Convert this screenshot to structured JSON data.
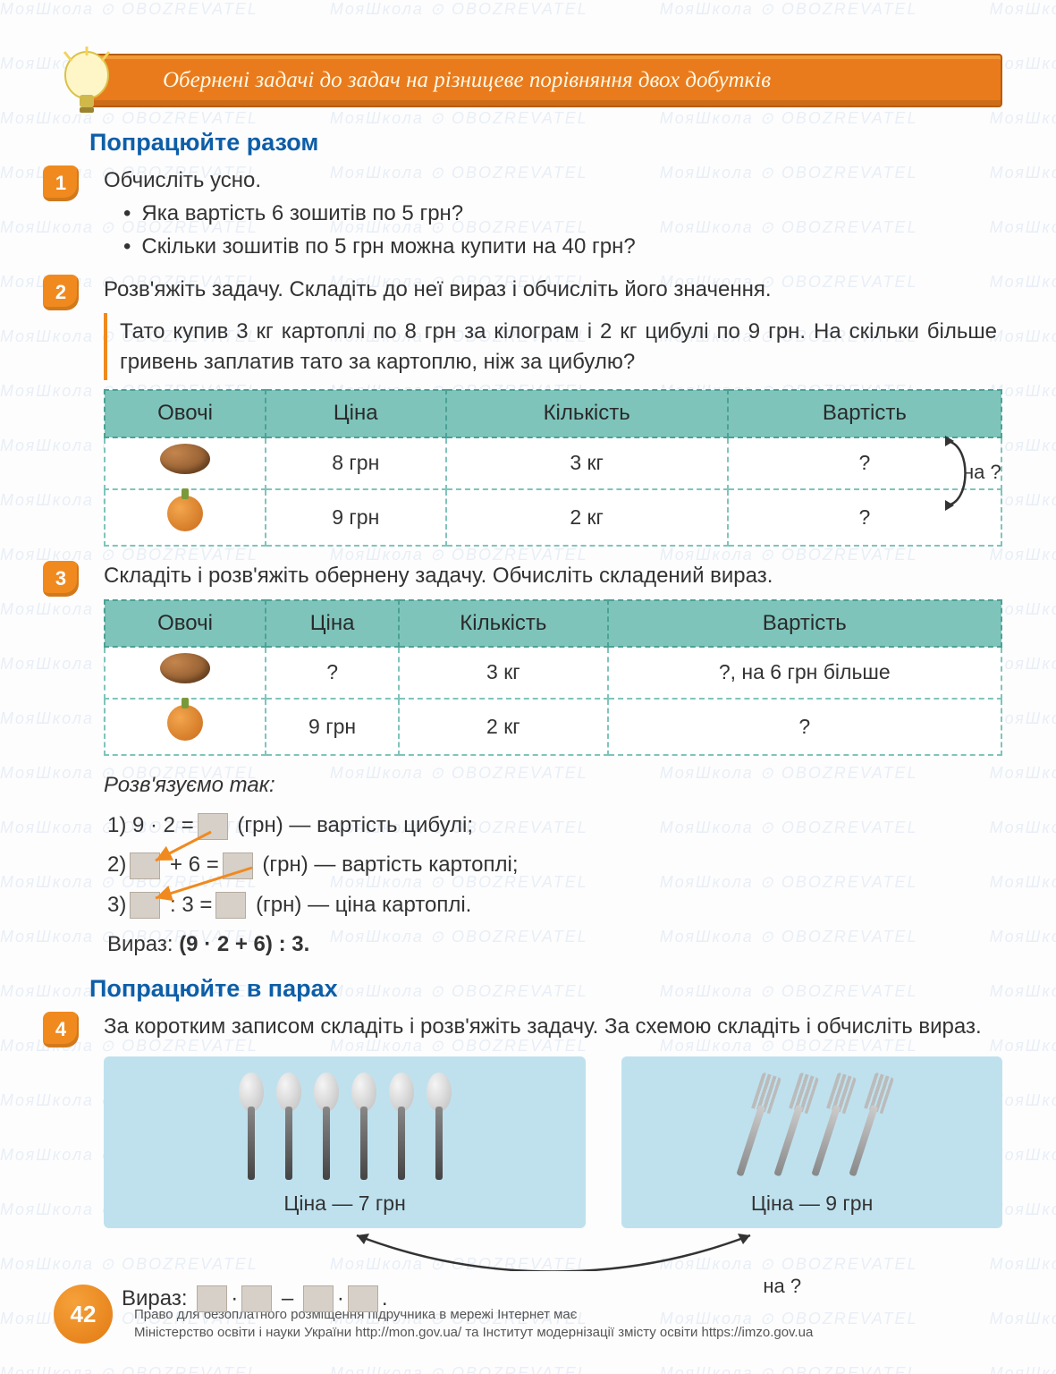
{
  "watermark": {
    "text1": "МояШкола",
    "text2": "OBOZREVATEL"
  },
  "banner": {
    "title": "Обернені задачі до задач на різницеве порівняння двох добутків"
  },
  "section1_title": "Попрацюйте разом",
  "task1": {
    "num": "1",
    "lead": "Обчисліть усно.",
    "b1": "Яка вартість 6 зошитів по 5 грн?",
    "b2": "Скільки зошитів по 5 грн можна купити на 40 грн?"
  },
  "task2": {
    "num": "2",
    "lead": "Розв'яжіть задачу. Складіть до неї вираз і обчисліть його значення.",
    "problem": "Тато купив 3 кг картоплі по 8 грн за кілограм і 2 кг цибулі по 9 грн. На скільки більше гривень заплатив тато за картоплю, ніж за цибулю?",
    "table": {
      "headers": [
        "Овочі",
        "Ціна",
        "Кількість",
        "Вартість"
      ],
      "row1": {
        "price": "8 грн",
        "qty": "3 кг",
        "cost": "?"
      },
      "row2": {
        "price": "9 грн",
        "qty": "2 кг",
        "cost": "?"
      },
      "side_label": "на ?"
    }
  },
  "task3": {
    "num": "3",
    "lead": "Складіть і розв'яжіть обернену задачу. Обчисліть складений вираз.",
    "table": {
      "headers": [
        "Овочі",
        "Ціна",
        "Кількість",
        "Вартість"
      ],
      "row1": {
        "price": "?",
        "qty": "3 кг",
        "cost": "?, на 6 грн більше"
      },
      "row2": {
        "price": "9 грн",
        "qty": "2 кг",
        "cost": "?"
      }
    },
    "solve_label": "Розв'язуємо так:",
    "step1_a": "1) 9 · 2 =",
    "step1_b": "(грн) — вартість цибулі;",
    "step2_a": "2)",
    "step2_b": "+ 6 =",
    "step2_c": "(грн) — вартість картоплі;",
    "step3_a": "3)",
    "step3_b": ": 3 =",
    "step3_c": "(грн) — ціна картоплі.",
    "expr_label": "Вираз:",
    "expr": "(9 · 2 + 6) : 3."
  },
  "section2_title": "Попрацюйте в парах",
  "task4": {
    "num": "4",
    "lead": "За коротким записом складіть і розв'яжіть задачу. За схемою складіть і обчисліть вираз.",
    "spoons": {
      "count": 6,
      "price": "Ціна — 7 грн"
    },
    "forks": {
      "count": 4,
      "price": "Ціна — 9 грн"
    },
    "expr_label": "Вираз:",
    "dot": "·",
    "minus": "–",
    "period": ".",
    "na_q": "на ?"
  },
  "page_number": "42",
  "footer": {
    "line1": "Право для безоплатного розміщення підручника в мережі Інтернет має",
    "line2": "Міністерство освіти і науки України http://mon.gov.ua/ та Інститут модернізації змісту освіти https://imzo.gov.ua"
  },
  "colors": {
    "banner_bg": "#e97b1c",
    "banner_border": "#b85c0a",
    "title": "#0d5ea8",
    "task_num_bg": "#f08a1f",
    "table_header_bg": "#7fc4bb",
    "table_border": "#7fc4bb",
    "utensil_bg": "#bfe1ee",
    "box_bg": "#d6d0c8"
  }
}
